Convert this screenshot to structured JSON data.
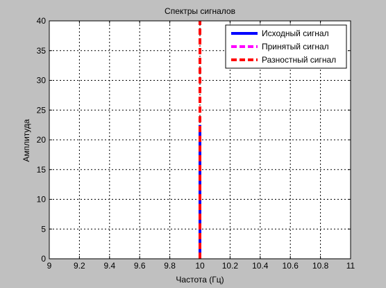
{
  "chart_data": {
    "type": "line",
    "title": "Спектры сигналов",
    "xlabel": "Частота (Гц)",
    "ylabel": "Амплитуда",
    "xlim": [
      9,
      11
    ],
    "ylim": [
      0,
      40
    ],
    "xticks": [
      9,
      9.2,
      9.4,
      9.6,
      9.8,
      10,
      10.2,
      10.4,
      10.6,
      10.8,
      11
    ],
    "xtick_labels": [
      "9",
      "9.2",
      "9.4",
      "9.6",
      "9.8",
      "10",
      "10.2",
      "10.4",
      "10.6",
      "10.8",
      "11"
    ],
    "yticks": [
      0,
      5,
      10,
      15,
      20,
      25,
      30,
      35,
      40
    ],
    "ytick_labels": [
      "0",
      "5",
      "10",
      "15",
      "20",
      "25",
      "30",
      "35",
      "40"
    ],
    "grid": true,
    "legend_position": "top-right",
    "series": [
      {
        "name": "Исходный сигнал",
        "color": "#0000ff",
        "style": "solid",
        "x": [
          10,
          10
        ],
        "y": [
          0,
          22.5
        ]
      },
      {
        "name": "Принятый сигнал",
        "color": "#ff00ff",
        "style": "dashed",
        "x": [
          10,
          10
        ],
        "y": [
          0,
          22.5
        ]
      },
      {
        "name": "Разностный сигнал",
        "color": "#ff0000",
        "style": "dashed",
        "x": [
          10,
          10
        ],
        "y": [
          0,
          40
        ]
      }
    ]
  }
}
